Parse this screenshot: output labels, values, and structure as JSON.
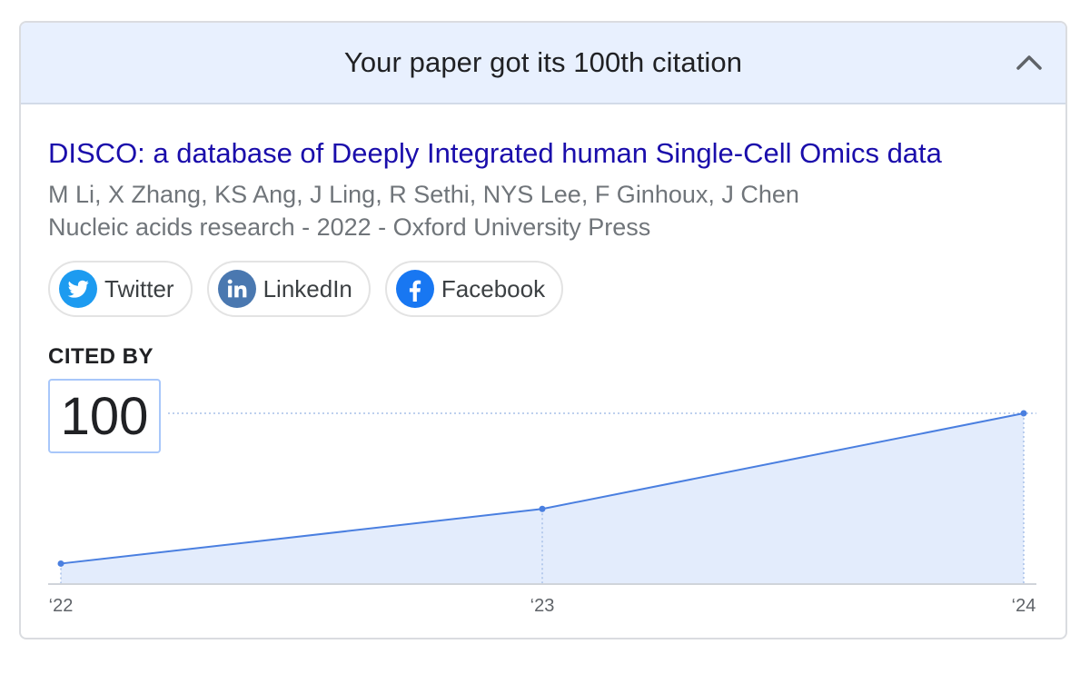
{
  "header": {
    "title": "Your paper got its 100th citation"
  },
  "paper": {
    "title": "DISCO: a database of Deeply Integrated human Single-Cell Omics data",
    "authors": "M Li, X Zhang, KS Ang, J Ling, R Sethi, NYS Lee, F Ginhoux, J Chen",
    "venue": "Nucleic acids research - 2022 - Oxford University Press"
  },
  "share": [
    {
      "label": "Twitter",
      "icon": "twitter-icon",
      "color": "#1d9bf0"
    },
    {
      "label": "LinkedIn",
      "icon": "linkedin-icon",
      "color": "#4a78b0"
    },
    {
      "label": "Facebook",
      "icon": "facebook-icon",
      "color": "#1877f2"
    }
  ],
  "cited": {
    "label": "CITED BY",
    "count": "100"
  },
  "colors": {
    "link": "#1a0dab",
    "header_bg": "#e8f0fe",
    "line": "#4a7fe0",
    "area": "#e3ecfc"
  },
  "chart_data": {
    "type": "area",
    "categories": [
      "‘22",
      "‘23",
      "‘24"
    ],
    "values": [
      12,
      44,
      100
    ],
    "ylim": [
      0,
      100
    ],
    "xlabel": "",
    "ylabel": "",
    "grid": false
  }
}
